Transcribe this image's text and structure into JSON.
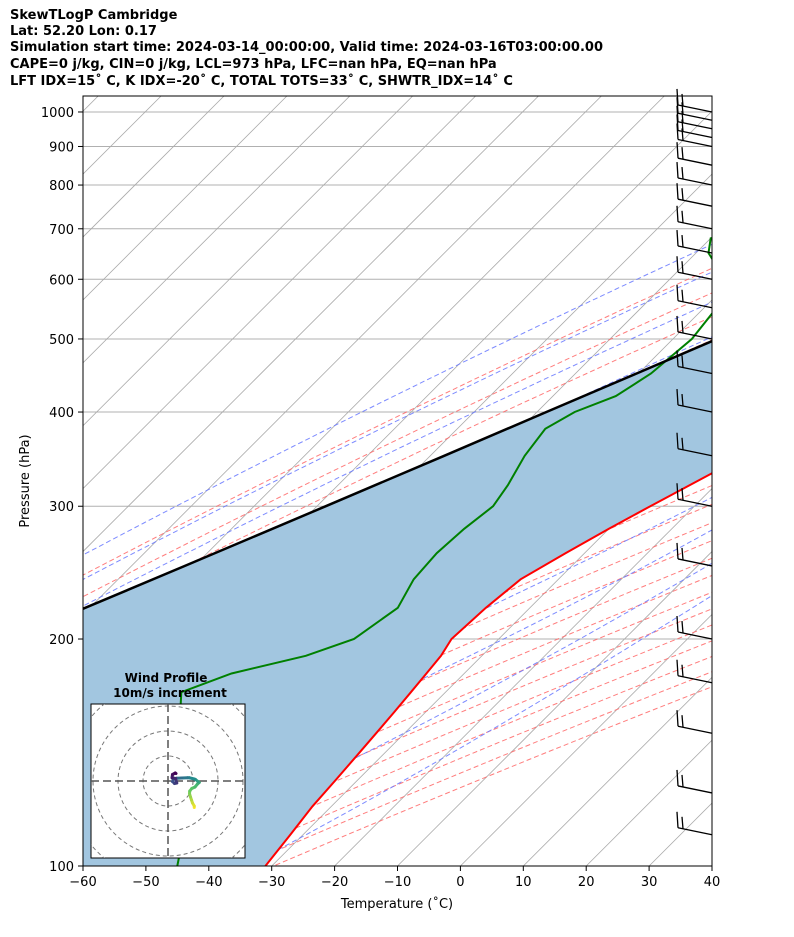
{
  "header": {
    "line1": "SkewTLogP Cambridge",
    "line2": "Lat: 52.20   Lon: 0.17",
    "line3": "Simulation start time: 2024-03-14_00:00:00, Valid time: 2024-03-16T03:00:00.00",
    "line4": "CAPE=0 j/kg, CIN=0 j/kg, LCL=973 hPa, LFC=nan hPa, EQ=nan hPa",
    "line5": "LFT IDX=15˚ C, K IDX=-20˚ C, TOTAL TOTS=33˚ C, SHWTR_IDX=14˚ C"
  },
  "chart_data": {
    "type": "line",
    "xlabel": "Temperature (˚C)",
    "ylabel": "Pressure (hPa)",
    "xlim": [
      -60,
      40
    ],
    "ylim": [
      1050,
      100
    ],
    "y_scale": "log",
    "skew_degrees": 45,
    "grid": true,
    "x_ticks": [
      -60,
      -50,
      -40,
      -30,
      -20,
      -10,
      0,
      10,
      20,
      30,
      40
    ],
    "y_ticks": [
      1000,
      900,
      800,
      700,
      600,
      500,
      400,
      300,
      200,
      100
    ],
    "colors": {
      "temperature": "#ff0000",
      "dewpoint": "#008000",
      "parcel": "#000000",
      "cape_fill": "#a2c6e0",
      "dry_adiabats": "#ff6666",
      "moist_adiabats": "#6677ff",
      "isotherms": "#aaaaaa",
      "mixing_ratio": "#9955cc"
    },
    "series": [
      {
        "key": "temperature",
        "pressure": [
          1030,
          1020,
          1005,
          990,
          975,
          950,
          900,
          850,
          800,
          750,
          700,
          650,
          600,
          550,
          500,
          450,
          400,
          350,
          300,
          280,
          260,
          240,
          220,
          200,
          190,
          180,
          170,
          160,
          150,
          140,
          130,
          120,
          110,
          100
        ],
        "values": [
          6.4,
          7.0,
          6.4,
          5.9,
          5.2,
          4.5,
          3.7,
          3.2,
          2.8,
          2.5,
          2.0,
          1.3,
          0.0,
          -2.0,
          -5.0,
          -9.0,
          -14.0,
          -20.0,
          -27.0,
          -30.0,
          -33.0,
          -36.0,
          -37.0,
          -37.5,
          -36.5,
          -36.0,
          -35.5,
          -35.0,
          -34.5,
          -34.0,
          -33.5,
          -33.0,
          -32.0,
          -31.0
        ]
      },
      {
        "key": "dewpoint",
        "pressure": [
          1020,
          1005,
          990,
          970,
          950,
          920,
          900,
          870,
          850,
          800,
          775,
          750,
          700,
          680,
          650,
          620,
          600,
          550,
          500,
          450,
          420,
          400,
          380,
          350,
          320,
          300,
          280,
          260,
          240,
          220,
          200,
          190,
          180,
          170,
          160,
          150,
          140,
          130,
          120,
          110,
          100
        ],
        "values": [
          3.9,
          3.0,
          1.0,
          -1.0,
          -3.5,
          -6.0,
          -8.0,
          -11.0,
          -14.0,
          -22.0,
          -30.0,
          -40.0,
          -55.0,
          -60.0,
          -58.0,
          -54.0,
          -50.0,
          -48.0,
          -47.0,
          -48.0,
          -50.0,
          -54.0,
          -56.0,
          -55.0,
          -53.0,
          -52.0,
          -53.0,
          -53.5,
          -53.0,
          -51.0,
          -53.0,
          -58.0,
          -67.0,
          -72.0,
          -69.0,
          -65.0,
          -61.0,
          -57.0,
          -53.0,
          -49.0,
          -45.0
        ]
      },
      {
        "key": "parcel",
        "pressure": [
          1030,
          1000,
          973,
          950,
          900,
          850,
          800,
          750,
          700,
          650,
          600,
          550,
          500,
          450,
          400,
          350,
          300,
          250,
          200,
          150,
          100
        ],
        "values": [
          4.5,
          2.0,
          -0.5,
          -2.0,
          -5.2,
          -8.6,
          -12.3,
          -16.3,
          -20.7,
          -25.5,
          -30.8,
          -36.6,
          -43.0,
          -50.3,
          -58.5,
          -67.8,
          -78.6,
          -91.5,
          -107.5,
          -128.4,
          -158.3
        ]
      }
    ],
    "wind_barbs": {
      "pressure": [
        1000,
        975,
        950,
        925,
        900,
        850,
        800,
        750,
        700,
        650,
        600,
        550,
        500,
        450,
        400,
        350,
        300,
        250,
        200,
        175,
        150,
        125,
        110
      ],
      "note": "barbs drawn at right edge"
    },
    "hodograph": {
      "title": "Wind Profile",
      "subtitle": "10m/s increment",
      "u": [
        10.5,
        10.5,
        9.8,
        9.4,
        9.0,
        8.6,
        8.7,
        9.5,
        10.8,
        11.8,
        12.5,
        12.0,
        11.0,
        10.5,
        8.5,
        7.8,
        5.5,
        3.5,
        2.1,
        1.8,
        2.6,
        3.5,
        3.0,
        1.6,
        1.8,
        2.9,
        3.2
      ],
      "v": [
        -10.6,
        -10.0,
        -8.8,
        -7.6,
        -6.4,
        -5.0,
        -4.0,
        -3.0,
        -2.4,
        -1.2,
        -0.6,
        -0.2,
        0.6,
        0.8,
        1.3,
        1.3,
        1.2,
        1.1,
        0.8,
        -0.2,
        -1.0,
        -0.8,
        1.0,
        1.3,
        2.6,
        3.2,
        3.0
      ]
    }
  }
}
